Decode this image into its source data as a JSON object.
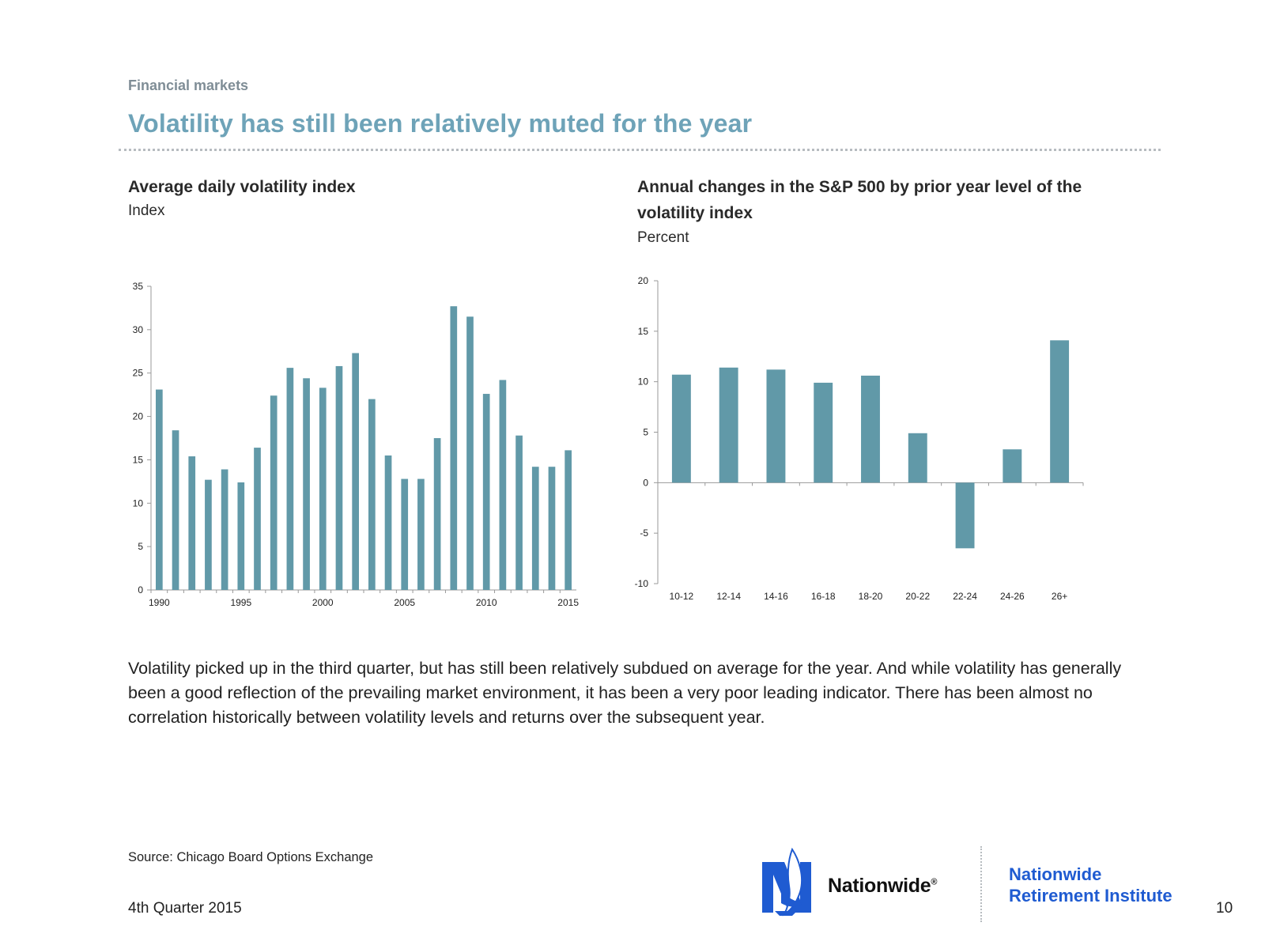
{
  "header": {
    "section_label": "Financial markets",
    "title": "Volatility has still been relatively muted for the year"
  },
  "chart_data": [
    {
      "type": "bar",
      "title": "Average daily volatility index",
      "ylabel": "Index",
      "x": [
        1990,
        1991,
        1992,
        1993,
        1994,
        1995,
        1996,
        1997,
        1998,
        1999,
        2000,
        2001,
        2002,
        2003,
        2004,
        2005,
        2006,
        2007,
        2008,
        2009,
        2010,
        2011,
        2012,
        2013,
        2014,
        2015
      ],
      "values": [
        23.1,
        18.4,
        15.4,
        12.7,
        13.9,
        12.4,
        16.4,
        22.4,
        25.6,
        24.4,
        23.3,
        25.8,
        27.3,
        22.0,
        15.5,
        12.8,
        12.8,
        17.5,
        32.7,
        31.5,
        22.6,
        24.2,
        17.8,
        14.2,
        14.2,
        16.1
      ],
      "x_ticks": [
        "1990",
        "1995",
        "2000",
        "2005",
        "2010",
        "2015"
      ],
      "x_tick_values": [
        1990,
        1995,
        2000,
        2005,
        2010,
        2015
      ],
      "y_ticks": [
        "0",
        "5",
        "10",
        "15",
        "20",
        "25",
        "30",
        "35"
      ],
      "ylim": [
        0,
        35
      ],
      "color": "#6199a8",
      "grid": false
    },
    {
      "type": "bar",
      "title": "Annual changes in the S&P 500 by prior year level of the volatility index",
      "ylabel": "Percent",
      "categories": [
        "10-12",
        "12-14",
        "14-16",
        "16-18",
        "18-20",
        "20-22",
        "22-24",
        "24-26",
        "26+"
      ],
      "values": [
        10.7,
        11.4,
        11.2,
        9.9,
        10.6,
        4.9,
        -6.5,
        3.3,
        14.1
      ],
      "y_ticks": [
        "-10",
        "-5",
        "0",
        "5",
        "10",
        "15",
        "20"
      ],
      "ylim": [
        -10,
        20
      ],
      "color": "#6199a8",
      "grid": false
    }
  ],
  "body_text": "Volatility picked up in the third quarter, but has still been relatively subdued on average for the year. And while volatility has generally been a good reflection of the prevailing market environment, it has been a very poor leading indicator. There has been almost no correlation historically between volatility levels and returns over the subsequent year.",
  "footer": {
    "source": "Source: Chicago Board Options Exchange",
    "quarter": "4th Quarter 2015",
    "brand_name": "Nationwide",
    "brand_mark": "®",
    "institute_line1": "Nationwide",
    "institute_line2": "Retirement Institute",
    "page_number": "10",
    "brand_color": "#1f5bd1",
    "logo_icon": "eagle-n-logo-icon"
  }
}
